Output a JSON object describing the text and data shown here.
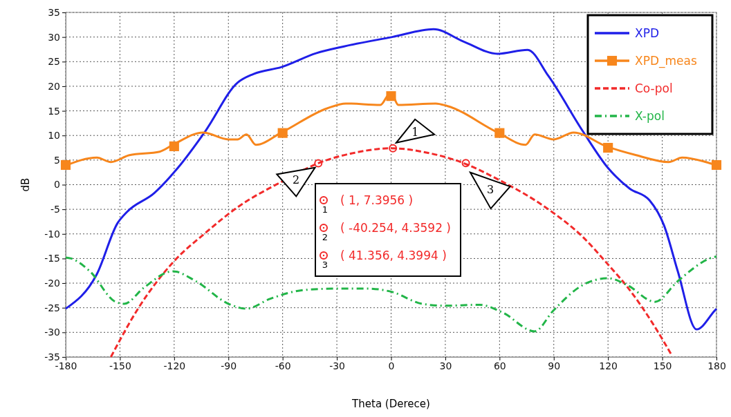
{
  "chart_data": {
    "type": "line",
    "xlabel": "Theta (Derece)",
    "ylabel": "dB",
    "xlim": [
      -180,
      180
    ],
    "xticks": [
      -180,
      -150,
      -120,
      -90,
      -60,
      -30,
      0,
      30,
      60,
      90,
      120,
      150,
      180
    ],
    "ylim": [
      -35,
      35
    ],
    "yticks": [
      -35,
      -30,
      -25,
      -20,
      -15,
      -10,
      -5,
      0,
      5,
      10,
      15,
      20,
      25,
      30,
      35
    ],
    "grid": true,
    "legend": "top right",
    "series": [
      {
        "name": "XPD",
        "color": "#1f1fe8",
        "line_style": "solid",
        "x": [
          -180,
          -162.8,
          -151.3,
          -146,
          -131,
          -118,
          -102.7,
          -85,
          -76,
          -60.6,
          -41.5,
          -26,
          0.6,
          23.5,
          40,
          59,
          75.5,
          87,
          106,
          120,
          132,
          143,
          151,
          158.6,
          169,
          179,
          180
        ],
        "values": [
          -25.2,
          -18.2,
          -7.8,
          -5.5,
          -1.7,
          3.4,
          10.9,
          20.7,
          22.5,
          23.9,
          26.7,
          28.1,
          30,
          31.6,
          29.1,
          26.6,
          27.4,
          22.1,
          10.9,
          3.4,
          -0.8,
          -3.2,
          -8.3,
          -17.6,
          -29.4,
          -25.6,
          -25.2
        ]
      },
      {
        "name": "XPD_meas",
        "color": "#f7861c",
        "line_style": "solid",
        "x": [
          -180,
          -162.8,
          -155,
          -144.8,
          -128,
          -120.7,
          -104,
          -90,
          -85,
          -80,
          -74.8,
          -60.6,
          -35.4,
          -25,
          -5.9,
          -1,
          0.6,
          4,
          24.7,
          31,
          59,
          74.4,
          79.4,
          90,
          101,
          119,
          135.6,
          153.6,
          161,
          179,
          180
        ],
        "values": [
          3.9,
          5.5,
          4.6,
          6,
          6.7,
          8.1,
          10.6,
          9.2,
          9.2,
          10.2,
          8.1,
          10.6,
          15.5,
          16.5,
          16.2,
          18.3,
          18.2,
          16.2,
          16.5,
          16,
          10.6,
          8.1,
          10.2,
          9.2,
          10.6,
          7.8,
          6,
          4.6,
          5.5,
          4.1,
          4
        ]
      },
      {
        "type": "scatter",
        "color": "#f7861c",
        "marker": "square",
        "x": [
          -180,
          -120,
          -60,
          0,
          60,
          120,
          180
        ],
        "values": [
          4,
          7.8,
          10.5,
          18,
          10.5,
          7.5,
          4
        ]
      },
      {
        "name": "Co-pol",
        "color": "#f22a2a",
        "line_style": "dashed",
        "x": [
          -155,
          -140,
          -120.7,
          -102.7,
          -85,
          -60.6,
          -40,
          -20,
          0,
          20,
          40,
          59,
          87,
          106,
          119,
          132,
          144.4,
          155
        ],
        "values": [
          -35,
          -25.2,
          -15.8,
          -9.8,
          -4.6,
          0.6,
          4.4,
          6.5,
          7.4,
          6.5,
          4.4,
          1.1,
          -5,
          -10.6,
          -15.8,
          -21.4,
          -28,
          -34.5
        ]
      },
      {
        "name": "X-pol",
        "color": "#22b548",
        "line_style": "dashdot",
        "x": [
          -180,
          -177,
          -166.6,
          -152.5,
          -147.5,
          -137,
          -120.7,
          -108,
          -90,
          -80,
          -67,
          -48,
          -29,
          -13.6,
          0.6,
          17,
          29.6,
          48.8,
          61.8,
          79.4,
          89.7,
          106,
          120,
          130.6,
          146,
          158.6,
          177.7,
          180
        ],
        "values": [
          -14.8,
          -15,
          -17.6,
          -23.8,
          -24.2,
          -21,
          -17.6,
          -19.6,
          -24.2,
          -25.2,
          -23.2,
          -21.4,
          -21.1,
          -21.1,
          -21.8,
          -24.2,
          -24.6,
          -24.4,
          -26,
          -29.8,
          -25.6,
          -20.4,
          -19,
          -20.4,
          -23.8,
          -19.6,
          -14.8,
          -14.6
        ]
      }
    ],
    "annotations": [
      {
        "text": "1",
        "x": 1,
        "y": 7.3956
      },
      {
        "text": "2",
        "x": -40.254,
        "y": 4.3592
      },
      {
        "text": "3",
        "x": 41.356,
        "y": 4.3994
      },
      "( 1, 7.3956 )",
      "( -40.254, 4.3592 )",
      "( 41.356, 4.3994 )"
    ]
  }
}
